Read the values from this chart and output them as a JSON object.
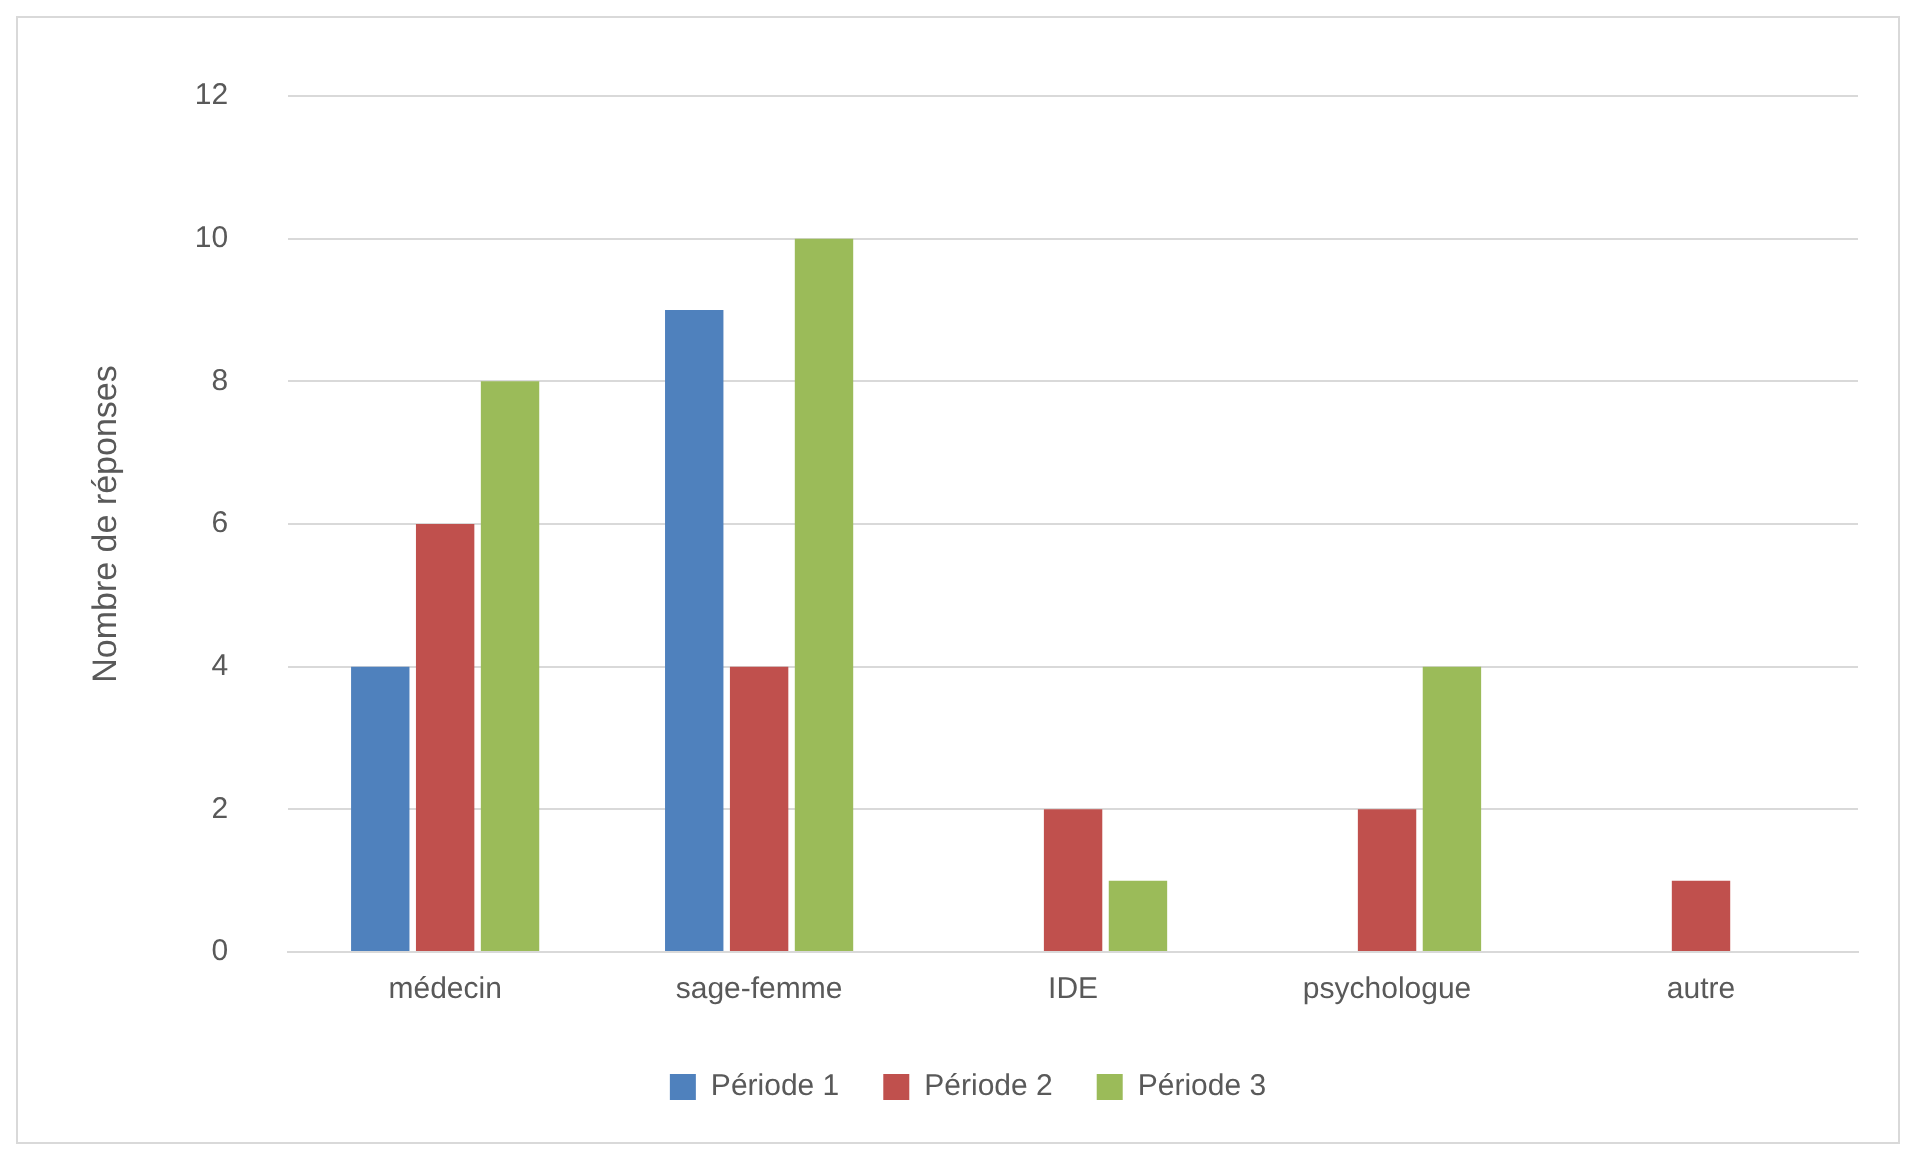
{
  "chart_data": {
    "type": "bar",
    "ylabel": "Nombre de réponses",
    "categories": [
      "médecin",
      "sage-femme",
      "IDE",
      "psychologue",
      "autre"
    ],
    "series": [
      {
        "name": "Période 1",
        "color": "#4f81bd",
        "values": [
          4,
          9,
          null,
          null,
          null
        ]
      },
      {
        "name": "Période 2",
        "color": "#c0504d",
        "values": [
          6,
          4,
          2,
          2,
          1
        ]
      },
      {
        "name": "Période 3",
        "color": "#9bbb59",
        "values": [
          8,
          10,
          1,
          4,
          null
        ]
      }
    ],
    "ylim": [
      0,
      12
    ],
    "yticks": [
      0,
      2,
      4,
      6,
      8,
      10,
      12
    ],
    "grid": "y",
    "legend": "bottom"
  }
}
